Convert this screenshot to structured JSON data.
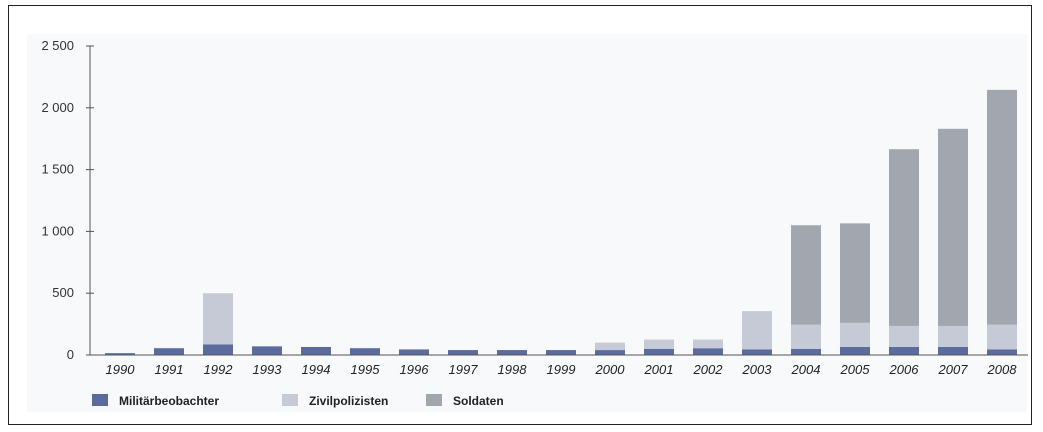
{
  "chart_data": {
    "type": "bar",
    "stacked": true,
    "categories": [
      "1990",
      "1991",
      "1992",
      "1993",
      "1994",
      "1995",
      "1996",
      "1997",
      "1998",
      "1999",
      "2000",
      "2001",
      "2002",
      "2003",
      "2004",
      "2005",
      "2006",
      "2007",
      "2008"
    ],
    "series": [
      {
        "name": "Militärbeobachter",
        "color": "#5b6b9e",
        "values": [
          15,
          55,
          85,
          70,
          65,
          55,
          45,
          40,
          40,
          40,
          40,
          50,
          55,
          45,
          50,
          65,
          65,
          65,
          45
        ]
      },
      {
        "name": "Zivilpolizisten",
        "color": "#c5cad6",
        "values": [
          0,
          0,
          415,
          0,
          0,
          0,
          0,
          0,
          0,
          0,
          60,
          75,
          70,
          310,
          195,
          195,
          170,
          170,
          200
        ]
      },
      {
        "name": "Soldaten",
        "color": "#a2a6ae",
        "values": [
          0,
          0,
          0,
          0,
          0,
          0,
          0,
          0,
          0,
          0,
          0,
          0,
          0,
          0,
          805,
          805,
          1430,
          1595,
          1900
        ]
      }
    ],
    "yticks": [
      0,
      500,
      1000,
      1500,
      2000,
      2500
    ],
    "ytick_labels": [
      "0",
      "500",
      "1 000",
      "1 500",
      "2 000",
      "2 500"
    ],
    "ylim": [
      0,
      2500
    ],
    "grid": false,
    "legend_position": "bottom-left"
  }
}
